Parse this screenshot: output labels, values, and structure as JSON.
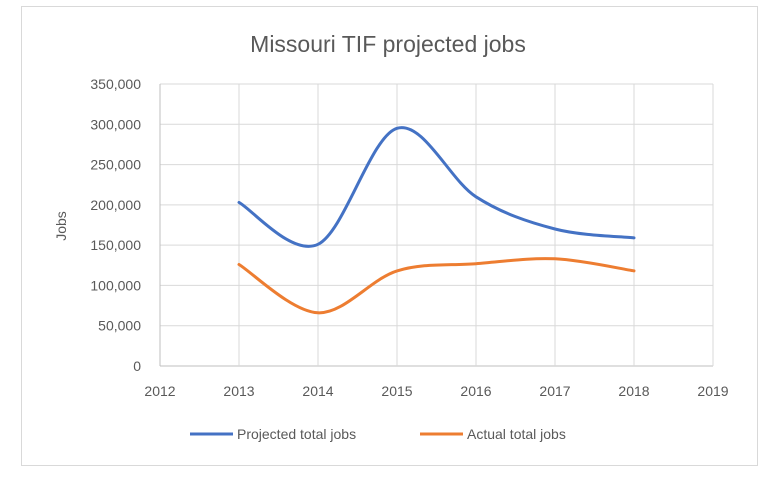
{
  "chart_data": {
    "type": "line",
    "title": "Missouri TIF projected jobs",
    "xlabel": "",
    "ylabel": "Jobs",
    "xlim": [
      2012,
      2019
    ],
    "ylim": [
      0,
      350000
    ],
    "x_ticks": [
      "2012",
      "2013",
      "2014",
      "2015",
      "2016",
      "2017",
      "2018",
      "2019"
    ],
    "y_ticks": [
      "0",
      "50,000",
      "100,000",
      "150,000",
      "200,000",
      "250,000",
      "300,000",
      "350,000"
    ],
    "x": [
      2013,
      2014,
      2015,
      2016,
      2017,
      2018
    ],
    "series": [
      {
        "name": "Projected total jobs",
        "color": "#4472c4",
        "values": [
          203000,
          151000,
          295000,
          210000,
          170000,
          159000
        ]
      },
      {
        "name": "Actual total jobs",
        "color": "#ed7d31",
        "values": [
          126000,
          66000,
          118000,
          127000,
          133000,
          118000
        ]
      }
    ],
    "grid": true,
    "legend_position": "bottom"
  }
}
